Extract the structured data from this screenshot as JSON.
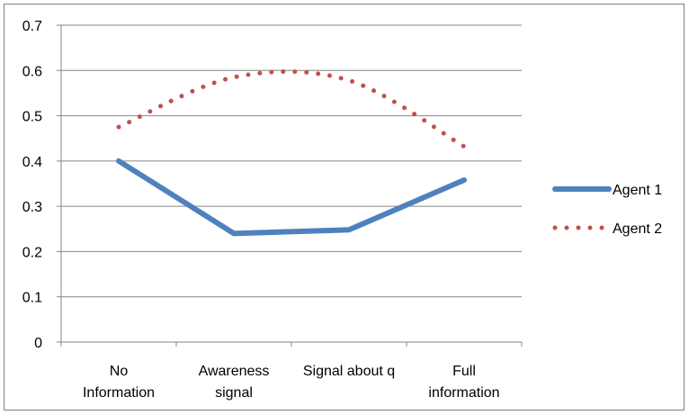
{
  "chart_data": {
    "type": "line",
    "categories": [
      [
        "No",
        "Information"
      ],
      [
        "Awareness",
        "signal"
      ],
      [
        "Signal about q"
      ],
      [
        "Full",
        "information"
      ]
    ],
    "ylim": [
      0,
      0.7
    ],
    "yticks": [
      "0",
      "0.1",
      "0.2",
      "0.3",
      "0.4",
      "0.5",
      "0.6",
      "0.7"
    ],
    "grid": true,
    "legend_position": "right",
    "series": [
      {
        "name": "Agent 1",
        "values": [
          0.4,
          0.24,
          0.248,
          0.358
        ],
        "color": "#4f81bd",
        "style": "solid",
        "smooth": false
      },
      {
        "name": "Agent 2",
        "values": [
          0.475,
          0.585,
          0.578,
          0.432
        ],
        "color": "#c0504d",
        "style": "dotted",
        "smooth": true
      }
    ]
  }
}
